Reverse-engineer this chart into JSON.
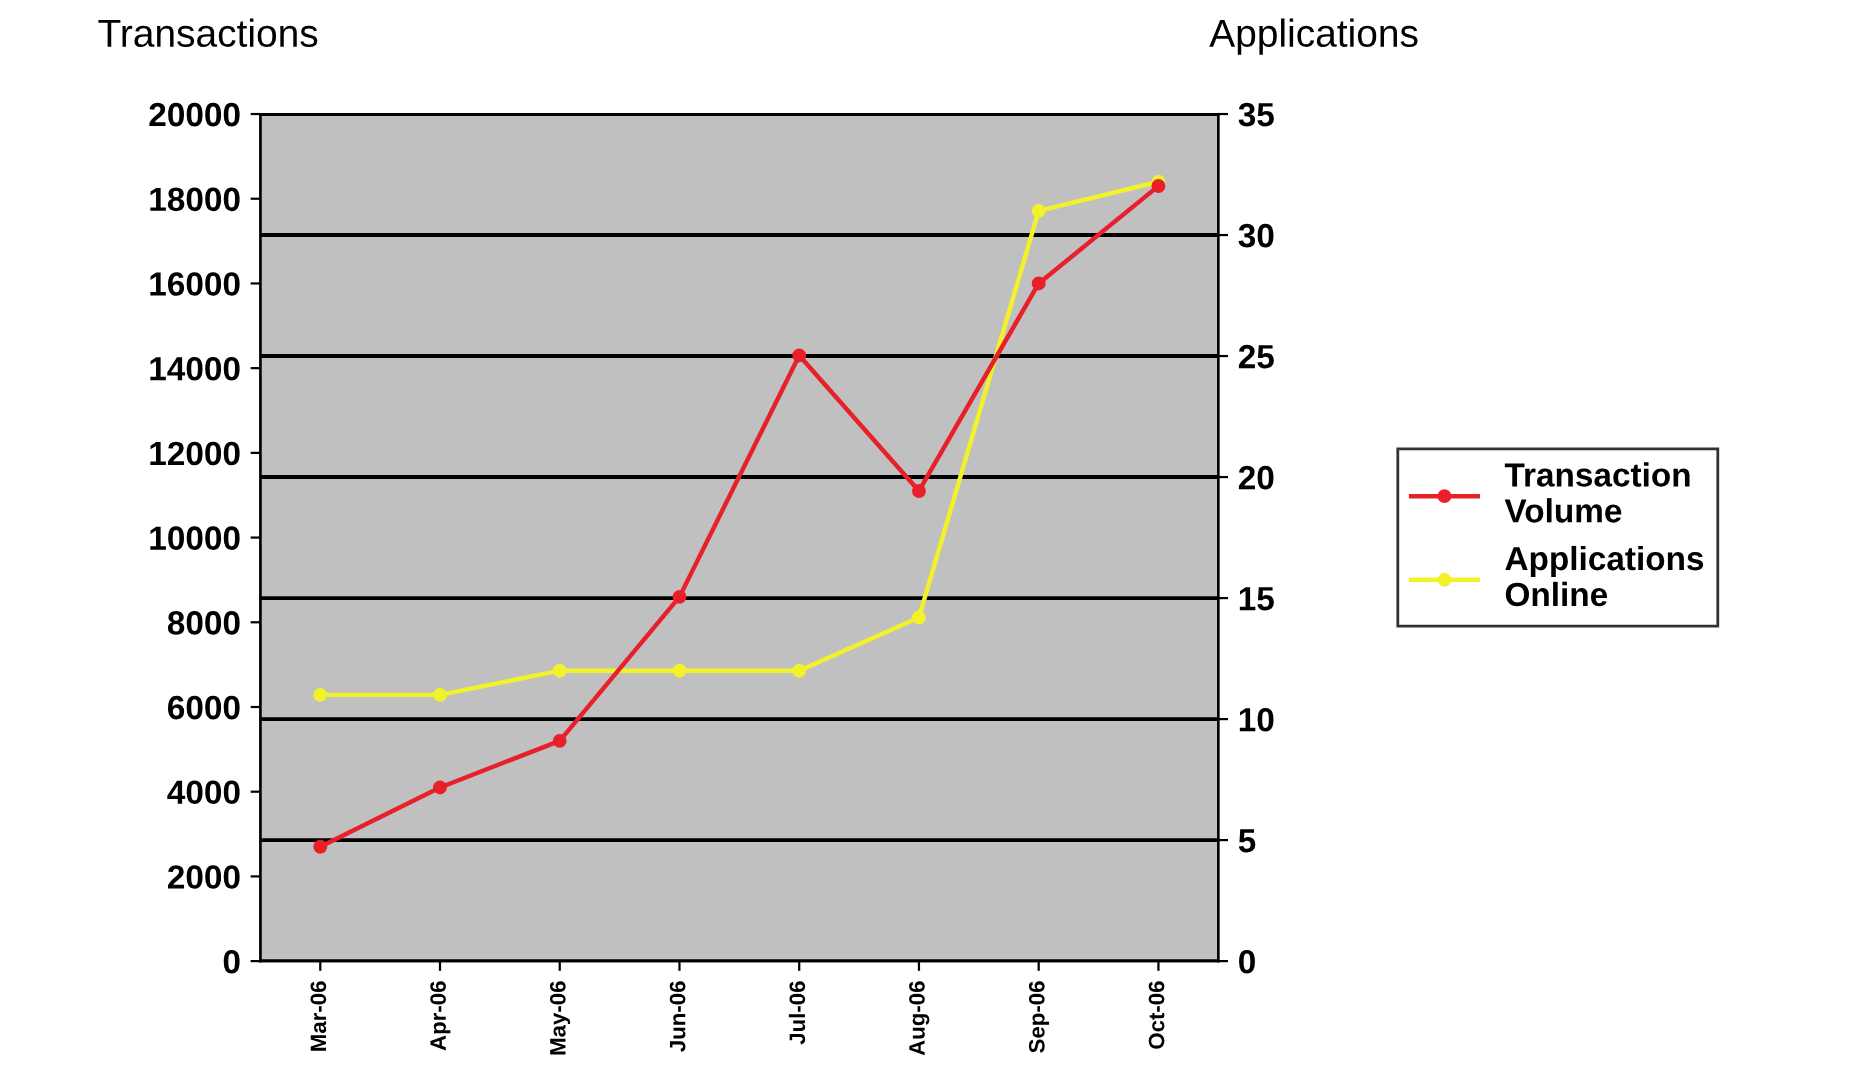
{
  "chart_data": {
    "type": "line",
    "ylabel": "Transactions",
    "y2label": "Applications",
    "categories": [
      "Mar-06",
      "Apr-06",
      "May-06",
      "Jun-06",
      "Jul-06",
      "Aug-06",
      "Sep-06",
      "Oct-06"
    ],
    "series": [
      {
        "name": "Transaction Volume",
        "color": "#e8202a",
        "values": [
          2700,
          4100,
          5200,
          8600,
          14300,
          11100,
          16000,
          18300
        ]
      },
      {
        "name": "Applications Online",
        "color": "#f2f22a",
        "axis": "y2",
        "values": [
          11,
          11,
          12,
          12,
          12,
          14.2,
          31,
          32.2
        ]
      }
    ],
    "ylim": [
      0,
      20000
    ],
    "yticks": [
      0,
      2000,
      4000,
      6000,
      8000,
      10000,
      12000,
      14000,
      16000,
      18000,
      20000
    ],
    "y2lim": [
      0,
      35
    ],
    "y2ticks": [
      0,
      5,
      10,
      15,
      20,
      25,
      30,
      35
    ],
    "grid": true,
    "legend": "right",
    "marker": "circle",
    "line_style": "solid"
  }
}
